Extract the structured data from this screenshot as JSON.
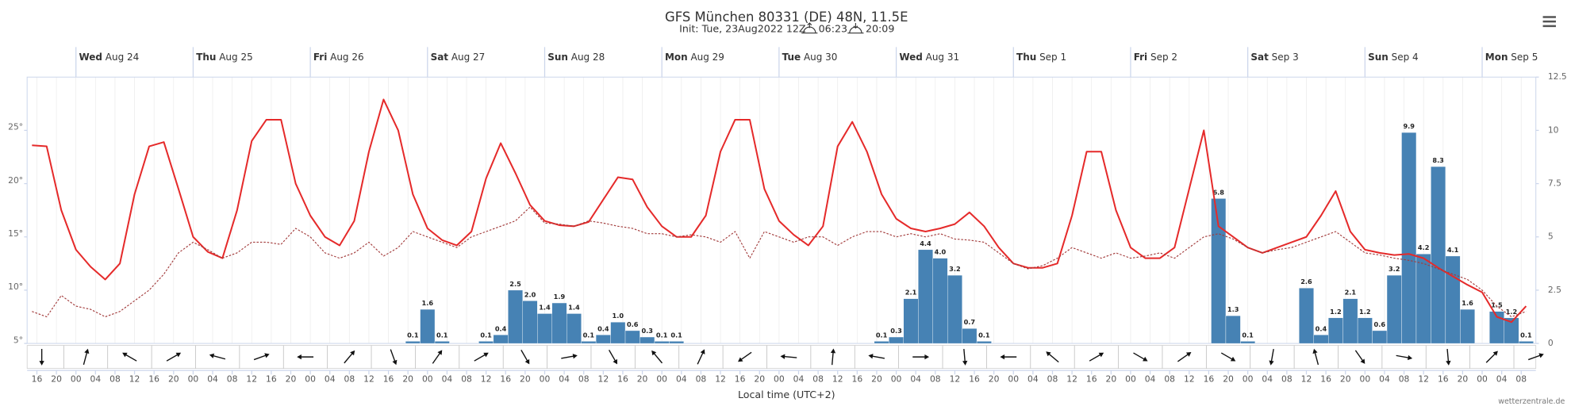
{
  "chart_data": {
    "type": "line",
    "title": "GFS München 80331 (DE) 48N, 11.5E",
    "subtitle": "Init: Tue, 23Aug2022 12Z",
    "sunrise": "06:23",
    "sunset": "20:09",
    "xlabel": "Local time (UTC+2)",
    "credit": "wetterzentrale.de",
    "xlim": [
      -10,
      299
    ],
    "xticks": [
      {
        "value": -8,
        "label": "16"
      },
      {
        "value": -4,
        "label": "20"
      },
      {
        "value": 0,
        "label": "00"
      },
      {
        "value": 4,
        "label": "04"
      },
      {
        "value": 8,
        "label": "08"
      },
      {
        "value": 12,
        "label": "12"
      },
      {
        "value": 16,
        "label": "16"
      },
      {
        "value": 20,
        "label": "20"
      },
      {
        "value": 24,
        "label": "00"
      },
      {
        "value": 28,
        "label": "04"
      },
      {
        "value": 32,
        "label": "08"
      },
      {
        "value": 36,
        "label": "12"
      },
      {
        "value": 40,
        "label": "16"
      },
      {
        "value": 44,
        "label": "20"
      },
      {
        "value": 48,
        "label": "00"
      },
      {
        "value": 52,
        "label": "04"
      },
      {
        "value": 56,
        "label": "08"
      },
      {
        "value": 60,
        "label": "12"
      },
      {
        "value": 64,
        "label": "16"
      },
      {
        "value": 68,
        "label": "20"
      },
      {
        "value": 72,
        "label": "00"
      },
      {
        "value": 76,
        "label": "04"
      },
      {
        "value": 80,
        "label": "08"
      },
      {
        "value": 84,
        "label": "12"
      },
      {
        "value": 88,
        "label": "16"
      },
      {
        "value": 92,
        "label": "20"
      },
      {
        "value": 96,
        "label": "00"
      },
      {
        "value": 100,
        "label": "04"
      },
      {
        "value": 104,
        "label": "08"
      },
      {
        "value": 108,
        "label": "12"
      },
      {
        "value": 112,
        "label": "16"
      },
      {
        "value": 116,
        "label": "20"
      },
      {
        "value": 120,
        "label": "00"
      },
      {
        "value": 124,
        "label": "04"
      },
      {
        "value": 128,
        "label": "08"
      },
      {
        "value": 132,
        "label": "12"
      },
      {
        "value": 136,
        "label": "16"
      },
      {
        "value": 140,
        "label": "20"
      },
      {
        "value": 144,
        "label": "00"
      },
      {
        "value": 148,
        "label": "04"
      },
      {
        "value": 152,
        "label": "08"
      },
      {
        "value": 156,
        "label": "12"
      },
      {
        "value": 160,
        "label": "16"
      },
      {
        "value": 164,
        "label": "20"
      },
      {
        "value": 168,
        "label": "00"
      },
      {
        "value": 172,
        "label": "04"
      },
      {
        "value": 176,
        "label": "08"
      },
      {
        "value": 180,
        "label": "12"
      },
      {
        "value": 184,
        "label": "16"
      },
      {
        "value": 188,
        "label": "20"
      },
      {
        "value": 192,
        "label": "00"
      },
      {
        "value": 196,
        "label": "04"
      },
      {
        "value": 200,
        "label": "08"
      },
      {
        "value": 204,
        "label": "12"
      },
      {
        "value": 208,
        "label": "16"
      },
      {
        "value": 212,
        "label": "20"
      },
      {
        "value": 216,
        "label": "00"
      },
      {
        "value": 220,
        "label": "04"
      },
      {
        "value": 224,
        "label": "08"
      },
      {
        "value": 228,
        "label": "12"
      },
      {
        "value": 232,
        "label": "16"
      },
      {
        "value": 236,
        "label": "20"
      },
      {
        "value": 240,
        "label": "00"
      },
      {
        "value": 244,
        "label": "04"
      },
      {
        "value": 248,
        "label": "08"
      },
      {
        "value": 252,
        "label": "12"
      },
      {
        "value": 256,
        "label": "16"
      },
      {
        "value": 260,
        "label": "20"
      },
      {
        "value": 264,
        "label": "00"
      },
      {
        "value": 268,
        "label": "04"
      },
      {
        "value": 272,
        "label": "08"
      },
      {
        "value": 276,
        "label": "12"
      },
      {
        "value": 280,
        "label": "16"
      },
      {
        "value": 284,
        "label": "20"
      },
      {
        "value": 288,
        "label": "00"
      },
      {
        "value": 292,
        "label": "04"
      },
      {
        "value": 296,
        "label": "08"
      }
    ],
    "day_ticks": [
      {
        "value": 0,
        "day": "Wed",
        "date": "Aug 24"
      },
      {
        "value": 24,
        "day": "Thu",
        "date": "Aug 25"
      },
      {
        "value": 48,
        "day": "Fri",
        "date": "Aug 26"
      },
      {
        "value": 72,
        "day": "Sat",
        "date": "Aug 27"
      },
      {
        "value": 96,
        "day": "Sun",
        "date": "Aug 28"
      },
      {
        "value": 120,
        "day": "Mon",
        "date": "Aug 29"
      },
      {
        "value": 144,
        "day": "Tue",
        "date": "Aug 30"
      },
      {
        "value": 168,
        "day": "Wed",
        "date": "Aug 31"
      },
      {
        "value": 192,
        "day": "Thu",
        "date": "Sep 1"
      },
      {
        "value": 216,
        "day": "Fri",
        "date": "Sep 2"
      },
      {
        "value": 240,
        "day": "Sat",
        "date": "Sep 3"
      },
      {
        "value": 264,
        "day": "Sun",
        "date": "Sep 4"
      },
      {
        "value": 288,
        "day": "Mon",
        "date": "Sep 5"
      }
    ],
    "ylim": [
      5,
      30
    ],
    "yticks": [
      {
        "value": 5,
        "label": "5°"
      },
      {
        "value": 10,
        "label": "10°"
      },
      {
        "value": 15,
        "label": "15°"
      },
      {
        "value": 20,
        "label": "20°"
      },
      {
        "value": 25,
        "label": "25°"
      }
    ],
    "y2lim": [
      0,
      12.5
    ],
    "y2ticks": [
      0,
      2.5,
      5,
      7.5,
      10,
      12.5
    ],
    "series": [
      {
        "color": "#e52a2a",
        "dash": false,
        "x": [
          -9,
          -6,
          -3,
          0,
          3,
          6,
          9,
          12,
          15,
          18,
          21,
          24,
          27,
          30,
          33,
          36,
          39,
          42,
          45,
          48,
          51,
          54,
          57,
          60,
          63,
          66,
          69,
          72,
          75,
          78,
          81,
          84,
          87,
          90,
          93,
          96,
          99,
          102,
          105,
          108,
          111,
          114,
          117,
          120,
          123,
          126,
          129,
          132,
          135,
          138,
          141,
          144,
          147,
          150,
          153,
          156,
          159,
          162,
          165,
          168,
          171,
          174,
          177,
          180,
          183,
          186,
          189,
          192,
          195,
          198,
          201,
          204,
          207,
          210,
          213,
          216,
          219,
          222,
          225,
          228,
          231,
          234,
          237,
          240,
          243,
          246,
          249,
          252,
          255,
          258,
          261,
          264,
          267,
          270,
          273,
          276,
          279,
          282,
          285,
          288,
          291,
          294,
          297
        ],
        "values": [
          23.6,
          23.5,
          17.5,
          13.8,
          12.2,
          11.0,
          12.5,
          19.0,
          23.5,
          23.9,
          19.5,
          15.0,
          13.6,
          13.0,
          17.5,
          24.0,
          26.0,
          26.0,
          20.0,
          17.0,
          15.0,
          14.2,
          16.5,
          23.0,
          27.9,
          25.0,
          19.0,
          15.8,
          14.7,
          14.2,
          15.5,
          20.5,
          23.8,
          21.0,
          18.0,
          16.5,
          16.1,
          16.0,
          16.4,
          18.5,
          20.6,
          20.4,
          17.8,
          16.0,
          15.0,
          15.0,
          17.0,
          23.0,
          26.0,
          26.0,
          19.5,
          16.5,
          15.2,
          14.2,
          16.0,
          23.5,
          25.8,
          23.0,
          19.0,
          16.7,
          15.8,
          15.5,
          15.8,
          16.2,
          17.3,
          16.0,
          14.0,
          12.5,
          12.1,
          12.1,
          12.5,
          17.0,
          23.0,
          23.0,
          17.5,
          14.0,
          13.0,
          13.0,
          14.0,
          19.5,
          25.0,
          16.0,
          15.0,
          14.0,
          13.5,
          14.0,
          14.5,
          15.0,
          17.0,
          19.3,
          15.5,
          13.8,
          13.5,
          13.3,
          13.4,
          13.0,
          12.1,
          11.3,
          10.5,
          9.8,
          7.5,
          7.0,
          8.5
        ]
      },
      {
        "color": "#a23b3b",
        "dash": true,
        "x": [
          -9,
          -6,
          -3,
          0,
          3,
          6,
          9,
          12,
          15,
          18,
          21,
          24,
          27,
          30,
          33,
          36,
          39,
          42,
          45,
          48,
          51,
          54,
          57,
          60,
          63,
          66,
          69,
          72,
          75,
          78,
          81,
          84,
          87,
          90,
          93,
          96,
          99,
          102,
          105,
          108,
          111,
          114,
          117,
          120,
          123,
          126,
          129,
          132,
          135,
          138,
          141,
          144,
          147,
          150,
          153,
          156,
          159,
          162,
          165,
          168,
          171,
          174,
          177,
          180,
          183,
          186,
          189,
          192,
          195,
          198,
          201,
          204,
          207,
          210,
          213,
          216,
          219,
          222,
          225,
          228,
          231,
          234,
          237,
          240,
          243,
          246,
          249,
          252,
          255,
          258,
          261,
          264,
          267,
          270,
          273,
          276,
          279,
          282,
          285,
          288,
          291,
          294,
          297
        ],
        "values": [
          8.0,
          7.5,
          9.5,
          8.5,
          8.2,
          7.5,
          8.0,
          9.0,
          10.0,
          11.5,
          13.5,
          14.5,
          13.8,
          13.0,
          13.5,
          14.5,
          14.5,
          14.3,
          15.8,
          15.0,
          13.5,
          13.0,
          13.5,
          14.5,
          13.2,
          14.0,
          15.5,
          15.0,
          14.5,
          14.0,
          15.0,
          15.5,
          16.0,
          16.5,
          17.8,
          16.3,
          16.2,
          16.0,
          16.5,
          16.3,
          16.0,
          15.8,
          15.3,
          15.3,
          15.0,
          15.2,
          15.0,
          14.5,
          15.5,
          13.0,
          15.5,
          15.0,
          14.5,
          15.0,
          15.0,
          14.2,
          15.0,
          15.5,
          15.5,
          15.0,
          15.3,
          15.0,
          15.3,
          14.8,
          14.7,
          14.5,
          13.5,
          12.5,
          12.0,
          12.3,
          13.0,
          14.0,
          13.5,
          13.0,
          13.5,
          13.0,
          13.2,
          13.5,
          13.0,
          14.0,
          15.0,
          15.3,
          14.8,
          14.0,
          13.5,
          13.8,
          14.0,
          14.5,
          15.0,
          15.5,
          14.5,
          13.5,
          13.3,
          13.0,
          12.8,
          12.5,
          12.0,
          11.5,
          11.0,
          10.0,
          8.5,
          7.5,
          8.0
        ]
      },
      {
        "type": "bar",
        "axis": "y2",
        "color": "#4682b4",
        "x": [
          69,
          72,
          75,
          84,
          87,
          90,
          93,
          96,
          99,
          102,
          105,
          108,
          111,
          114,
          117,
          120,
          123,
          165,
          168,
          171,
          174,
          177,
          180,
          183,
          186,
          234,
          237,
          240,
          252,
          255,
          258,
          261,
          264,
          267,
          270,
          273,
          276,
          279,
          282,
          285,
          291,
          294,
          297
        ],
        "values": [
          0.1,
          1.6,
          0.1,
          0.1,
          0.4,
          2.5,
          2.0,
          1.4,
          1.9,
          1.4,
          0.1,
          0.4,
          1.0,
          0.6,
          0.3,
          0.1,
          0.1,
          0.1,
          0.3,
          2.1,
          4.4,
          4.0,
          3.2,
          0.7,
          0.1,
          6.8,
          1.3,
          0.1,
          2.6,
          0.4,
          1.2,
          2.1,
          1.2,
          0.6,
          3.2,
          9.9,
          4.2,
          8.3,
          4.1,
          1.6,
          1.5,
          1.2,
          0.1
        ],
        "value_labels": [
          "0.1",
          "1.6",
          "0.1",
          "0.1",
          "0.4",
          "2.5",
          "2.0",
          "1.4",
          "1.9",
          "1.4",
          "0.1",
          "0.4",
          "1.0",
          "0.6",
          "0.3",
          "0.1",
          "0.1",
          "0.1",
          "0.3",
          "2.1",
          "4.4",
          "4.0",
          "3.2",
          "0.7",
          "0.1",
          "6.8",
          "1.3",
          "0.1",
          "2.6",
          "0.4",
          "1.2",
          "2.1",
          "1.2",
          "0.6",
          "3.2",
          "9.9",
          "4.2",
          "8.3",
          "4.1",
          "1.6",
          "1.5",
          "1.2",
          "0.1"
        ]
      }
    ],
    "wind": {
      "x": [
        -7,
        2,
        11,
        20,
        29,
        38,
        47,
        56,
        65,
        74,
        83,
        92,
        101,
        110,
        119,
        128,
        137,
        146,
        155,
        164,
        173,
        182,
        191,
        200,
        209,
        218,
        227,
        236,
        245,
        254,
        263,
        272,
        281,
        290,
        299
      ],
      "direction": [
        180,
        15,
        300,
        60,
        285,
        70,
        270,
        40,
        160,
        35,
        60,
        150,
        80,
        150,
        320,
        25,
        235,
        275,
        5,
        280,
        90,
        175,
        270,
        310,
        60,
        120,
        55,
        120,
        190,
        345,
        145,
        100,
        175,
        45,
        70
      ]
    }
  }
}
